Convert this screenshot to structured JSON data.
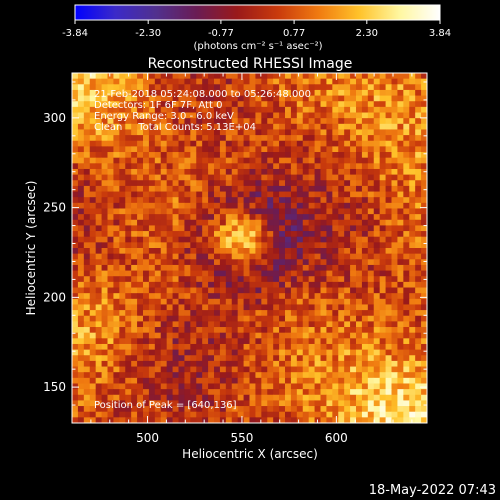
{
  "chart_data": {
    "type": "heatmap",
    "title": "Reconstructed RHESSI Image",
    "xlabel": "Heliocentric X (arcsec)",
    "ylabel": "Heliocentric Y (arcsec)",
    "xlim": [
      460,
      648
    ],
    "ylim": [
      130,
      325
    ],
    "x_ticks": [
      500,
      550,
      600
    ],
    "y_ticks": [
      150,
      200,
      250,
      300
    ],
    "colorbar": {
      "range": [
        -3.84,
        3.84
      ],
      "ticks": [
        "-3.84",
        "-2.30",
        "-0.77",
        "0.77",
        "2.30",
        "3.84"
      ],
      "unit_label": "(photons cm⁻² s⁻¹ asec⁻²)",
      "stops": [
        "#0000ff",
        "#3b2ac8",
        "#51308e",
        "#6a1c54",
        "#9a1a1a",
        "#c93a0c",
        "#f07a10",
        "#ffc22a",
        "#fff7a0",
        "#ffffff"
      ]
    },
    "annotations": {
      "time": "21-Feb-2018 05:24:08.000 to 05:26:48.000",
      "detectors": "Detectors: 1F 6F 7F, Att 0",
      "energy": "Energy Range: 3.0 - 6.0 keV",
      "method": "Clean     Total Counts: 5.13E+04",
      "peak": "Position of Peak = [640,136]"
    },
    "features": {
      "grid_cols": 60,
      "grid_rows": 62,
      "central_source": {
        "x": 550,
        "y": 232,
        "level": 0.8
      },
      "peak": {
        "x": 640,
        "y": 136,
        "level": 3.84
      }
    }
  },
  "footer": {
    "timestamp": "18-May-2022 07:43"
  }
}
